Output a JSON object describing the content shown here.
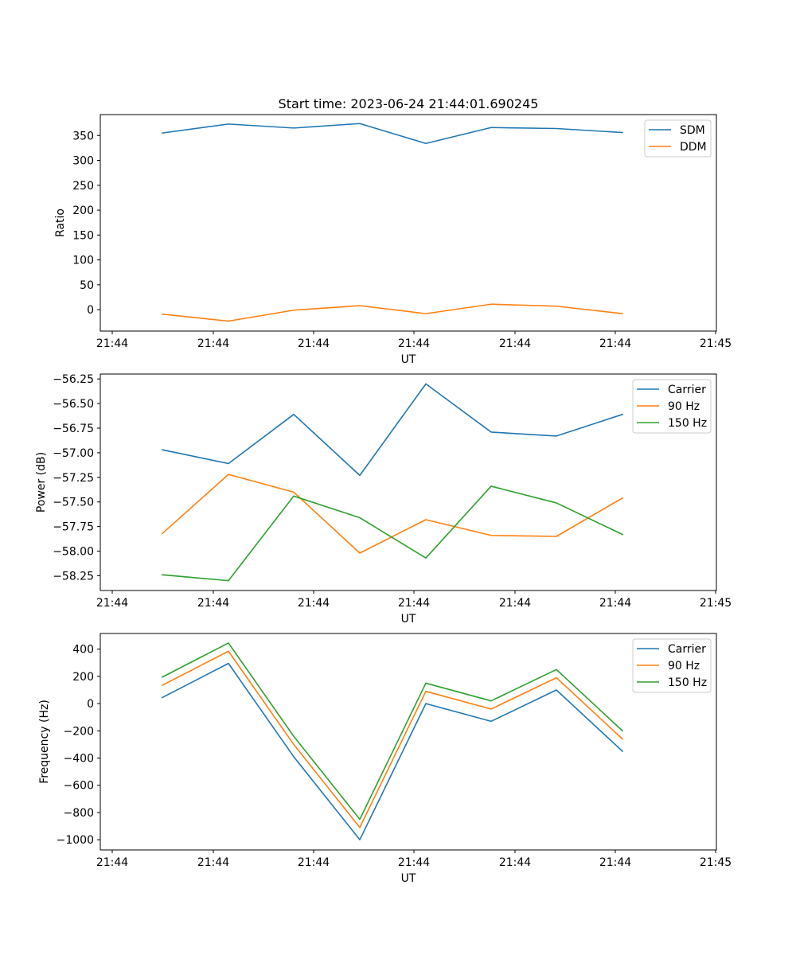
{
  "title": "Start time: 2023-06-24 21:44:01.690245",
  "colors": {
    "blue": "#1f77b4",
    "orange": "#ff7f0e",
    "green": "#2ca02c"
  },
  "chart_data": [
    {
      "type": "line",
      "xlabel": "UT",
      "ylabel": "Ratio",
      "xticks": [
        "21:44",
        "21:44",
        "21:44",
        "21:44",
        "21:44",
        "21:44",
        "21:45"
      ],
      "yticks": [
        "0",
        "50",
        "100",
        "150",
        "200",
        "250",
        "300",
        "350"
      ],
      "ylim": [
        -43,
        392
      ],
      "grid": false,
      "legend_position": "upper right",
      "series": [
        {
          "name": "SDM",
          "color": "#1f77b4",
          "values": [
            355,
            373,
            365,
            374,
            334,
            366,
            364,
            356
          ]
        },
        {
          "name": "DDM",
          "color": "#ff7f0e",
          "values": [
            -9,
            -23,
            -1,
            8,
            -8,
            11,
            7,
            -8
          ]
        }
      ]
    },
    {
      "type": "line",
      "xlabel": "UT",
      "ylabel": "Power (dB)",
      "xticks": [
        "21:44",
        "21:44",
        "21:44",
        "21:44",
        "21:44",
        "21:44",
        "21:45"
      ],
      "yticks": [
        "−58.25",
        "−58.00",
        "−57.75",
        "−57.50",
        "−57.25",
        "−57.00",
        "−56.75",
        "−56.50",
        "−56.25"
      ],
      "ylim": [
        -58.4,
        -56.2
      ],
      "grid": false,
      "legend_position": "upper right",
      "series": [
        {
          "name": "Carrier",
          "color": "#1f77b4",
          "values": [
            -56.97,
            -57.11,
            -56.61,
            -57.23,
            -56.3,
            -56.79,
            -56.83,
            -56.61
          ]
        },
        {
          "name": "90 Hz",
          "color": "#ff7f0e",
          "values": [
            -57.82,
            -57.22,
            -57.4,
            -58.02,
            -57.68,
            -57.84,
            -57.85,
            -57.46
          ]
        },
        {
          "name": "150 Hz",
          "color": "#2ca02c",
          "values": [
            -58.24,
            -58.3,
            -57.44,
            -57.66,
            -58.07,
            -57.34,
            -57.51,
            -57.83
          ]
        }
      ]
    },
    {
      "type": "line",
      "xlabel": "UT",
      "ylabel": "Frequency (Hz)",
      "xticks": [
        "21:44",
        "21:44",
        "21:44",
        "21:44",
        "21:44",
        "21:44",
        "21:45"
      ],
      "yticks": [
        "−1000",
        "−800",
        "−600",
        "−400",
        "−200",
        "0",
        "200",
        "400"
      ],
      "ylim": [
        -1075,
        515
      ],
      "grid": false,
      "legend_position": "upper right",
      "series": [
        {
          "name": "Carrier",
          "color": "#1f77b4",
          "values": [
            45,
            295,
            -390,
            -1000,
            0,
            -130,
            100,
            -350
          ]
        },
        {
          "name": "90 Hz",
          "color": "#ff7f0e",
          "values": [
            135,
            385,
            -300,
            -910,
            90,
            -40,
            190,
            -260
          ]
        },
        {
          "name": "150 Hz",
          "color": "#2ca02c",
          "values": [
            195,
            445,
            -240,
            -850,
            150,
            20,
            250,
            -200
          ]
        }
      ]
    }
  ]
}
